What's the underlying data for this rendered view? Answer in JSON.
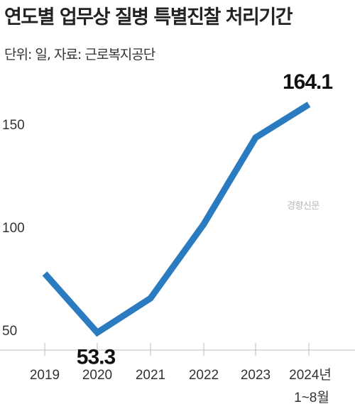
{
  "header": {
    "title": "연도별 업무상 질병 특별진찰 처리기간",
    "subtitle": "단위: 일, 자료: 근로복지공단"
  },
  "watermark": "경향신문",
  "chart_data": {
    "type": "line",
    "title": "연도별 업무상 질병 특별진찰 처리기간",
    "subtitle": "단위: 일, 자료: 근로복지공단",
    "xlabel": "",
    "ylabel": "",
    "categories": [
      "2019",
      "2020",
      "2021",
      "2022",
      "2023",
      "2024년"
    ],
    "category_sublabels": [
      "",
      "",
      "",
      "",
      "",
      "1~8월"
    ],
    "series": [
      {
        "values": [
          82,
          53.3,
          70,
          106,
          148,
          164.1
        ]
      }
    ],
    "data_labels": [
      {
        "index": 1,
        "text": "53.3"
      },
      {
        "index": 5,
        "text": "164.1"
      }
    ],
    "yticks": [
      50,
      100,
      150
    ],
    "ylim": [
      33,
      175
    ],
    "grid": false,
    "line_color": "#2a7bbf"
  }
}
